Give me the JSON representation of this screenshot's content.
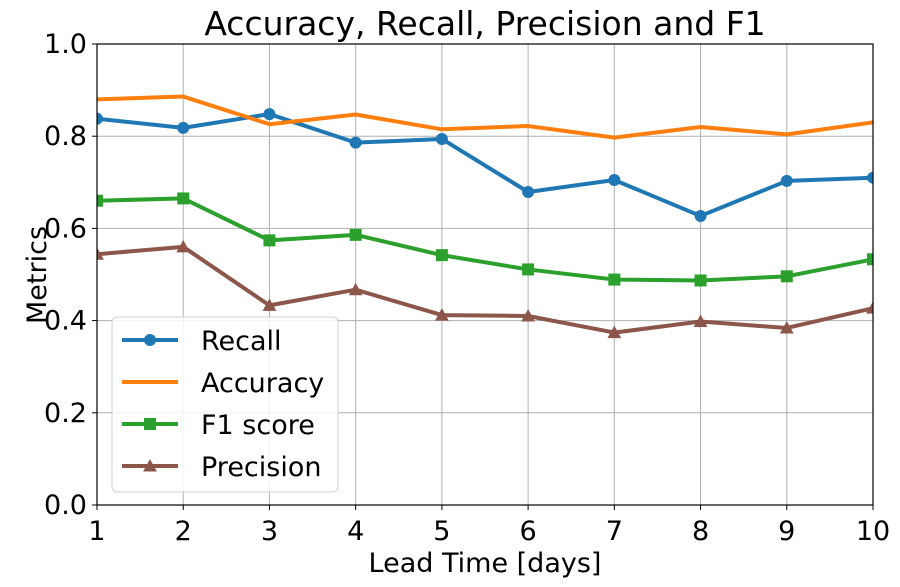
{
  "chart_data": {
    "type": "line",
    "title": "Accuracy, Recall, Precision and F1",
    "xlabel": "Lead Time [days]",
    "ylabel": "Metrics",
    "x": [
      1,
      2,
      3,
      4,
      5,
      6,
      7,
      8,
      9,
      10
    ],
    "xlim": [
      1,
      10
    ],
    "ylim": [
      0.0,
      1.0
    ],
    "xticks": [
      "1",
      "2",
      "3",
      "4",
      "5",
      "6",
      "7",
      "8",
      "9",
      "10"
    ],
    "yticks": [
      "0.0",
      "0.2",
      "0.4",
      "0.6",
      "0.8",
      "1.0"
    ],
    "grid": true,
    "legend_position": "lower-left",
    "series": [
      {
        "name": "Recall",
        "color": "#1f77b4",
        "marker": "circle",
        "values": [
          0.838,
          0.818,
          0.848,
          0.786,
          0.794,
          0.679,
          0.705,
          0.627,
          0.703,
          0.71
        ]
      },
      {
        "name": "Accuracy",
        "color": "#ff7f0e",
        "marker": "none",
        "values": [
          0.88,
          0.886,
          0.826,
          0.847,
          0.815,
          0.822,
          0.797,
          0.82,
          0.804,
          0.83
        ]
      },
      {
        "name": "F1 score",
        "color": "#2ca02c",
        "marker": "square",
        "values": [
          0.66,
          0.665,
          0.574,
          0.586,
          0.542,
          0.511,
          0.489,
          0.487,
          0.496,
          0.533
        ]
      },
      {
        "name": "Precision",
        "color": "#8c564b",
        "marker": "triangle",
        "values": [
          0.544,
          0.56,
          0.433,
          0.467,
          0.412,
          0.41,
          0.374,
          0.398,
          0.384,
          0.427
        ]
      }
    ]
  }
}
